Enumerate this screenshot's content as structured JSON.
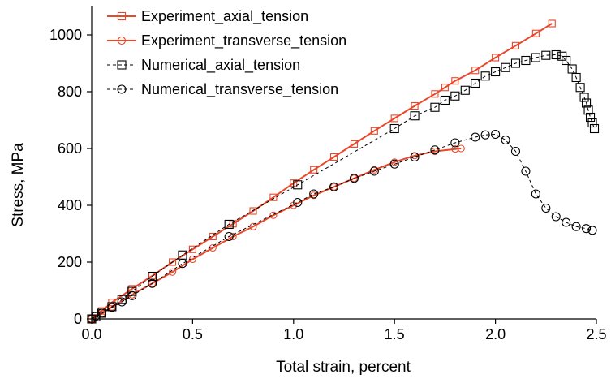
{
  "chart_data": {
    "type": "line",
    "title": "",
    "xlabel": "Total strain, percent",
    "ylabel": "Stress, MPa",
    "xlim": [
      0,
      2.5
    ],
    "ylim": [
      0,
      1100
    ],
    "x_ticks": [
      "0.0",
      "0.5",
      "1.0",
      "1.5",
      "2.0",
      "2.5"
    ],
    "y_ticks": [
      "0",
      "200",
      "400",
      "600",
      "800",
      "1000"
    ],
    "grid": false,
    "legend_position": "top-left",
    "series": [
      {
        "name": "Experiment_axial_tension",
        "color": "#e8472a",
        "marker": "square",
        "line": "solid",
        "x": [
          0,
          0.05,
          0.1,
          0.2,
          0.3,
          0.4,
          0.5,
          0.6,
          0.7,
          0.8,
          0.9,
          1.0,
          1.1,
          1.2,
          1.3,
          1.4,
          1.5,
          1.6,
          1.7,
          1.75,
          1.8,
          1.9,
          2.0,
          2.1,
          2.2,
          2.28
        ],
        "y": [
          0,
          28,
          58,
          106,
          152,
          200,
          245,
          290,
          335,
          380,
          428,
          478,
          525,
          570,
          616,
          662,
          706,
          750,
          792,
          815,
          838,
          875,
          920,
          962,
          1005,
          1040
        ]
      },
      {
        "name": "Experiment_transverse_tension",
        "color": "#e8472a",
        "marker": "circle",
        "line": "solid",
        "x": [
          0,
          0.05,
          0.1,
          0.2,
          0.3,
          0.4,
          0.5,
          0.6,
          0.7,
          0.8,
          0.9,
          1.0,
          1.1,
          1.2,
          1.3,
          1.4,
          1.5,
          1.6,
          1.7,
          1.8,
          1.83
        ],
        "y": [
          0,
          18,
          42,
          85,
          125,
          165,
          210,
          250,
          290,
          325,
          365,
          400,
          435,
          465,
          495,
          525,
          552,
          575,
          590,
          598,
          600
        ]
      },
      {
        "name": "Numerical_axial_tension",
        "color": "#000000",
        "marker": "square",
        "line": "dashed",
        "x": [
          0,
          0.02,
          0.05,
          0.1,
          0.15,
          0.2,
          0.3,
          0.45,
          0.68,
          1.02,
          1.5,
          1.6,
          1.7,
          1.75,
          1.8,
          1.85,
          1.9,
          1.95,
          2.0,
          2.05,
          2.1,
          2.15,
          2.2,
          2.25,
          2.3,
          2.33,
          2.35,
          2.38,
          2.4,
          2.42,
          2.44,
          2.45,
          2.46,
          2.47,
          2.48,
          2.49
        ],
        "y": [
          0,
          8,
          20,
          43,
          68,
          97,
          150,
          225,
          333,
          472,
          670,
          715,
          745,
          770,
          785,
          805,
          830,
          855,
          870,
          885,
          900,
          910,
          920,
          928,
          930,
          925,
          910,
          880,
          850,
          815,
          780,
          760,
          735,
          710,
          690,
          670
        ]
      },
      {
        "name": "Numerical_transverse_tension",
        "color": "#000000",
        "marker": "circle",
        "line": "dashed",
        "x": [
          0,
          0.02,
          0.05,
          0.1,
          0.15,
          0.2,
          0.3,
          0.45,
          0.68,
          1.02,
          1.1,
          1.2,
          1.3,
          1.4,
          1.5,
          1.6,
          1.7,
          1.8,
          1.9,
          1.95,
          2.0,
          2.05,
          2.1,
          2.15,
          2.2,
          2.25,
          2.3,
          2.35,
          2.4,
          2.45,
          2.48
        ],
        "y": [
          0,
          10,
          20,
          40,
          60,
          82,
          125,
          195,
          290,
          410,
          440,
          465,
          495,
          520,
          545,
          570,
          595,
          620,
          640,
          648,
          650,
          630,
          590,
          520,
          440,
          390,
          360,
          340,
          325,
          318,
          312
        ]
      }
    ]
  }
}
